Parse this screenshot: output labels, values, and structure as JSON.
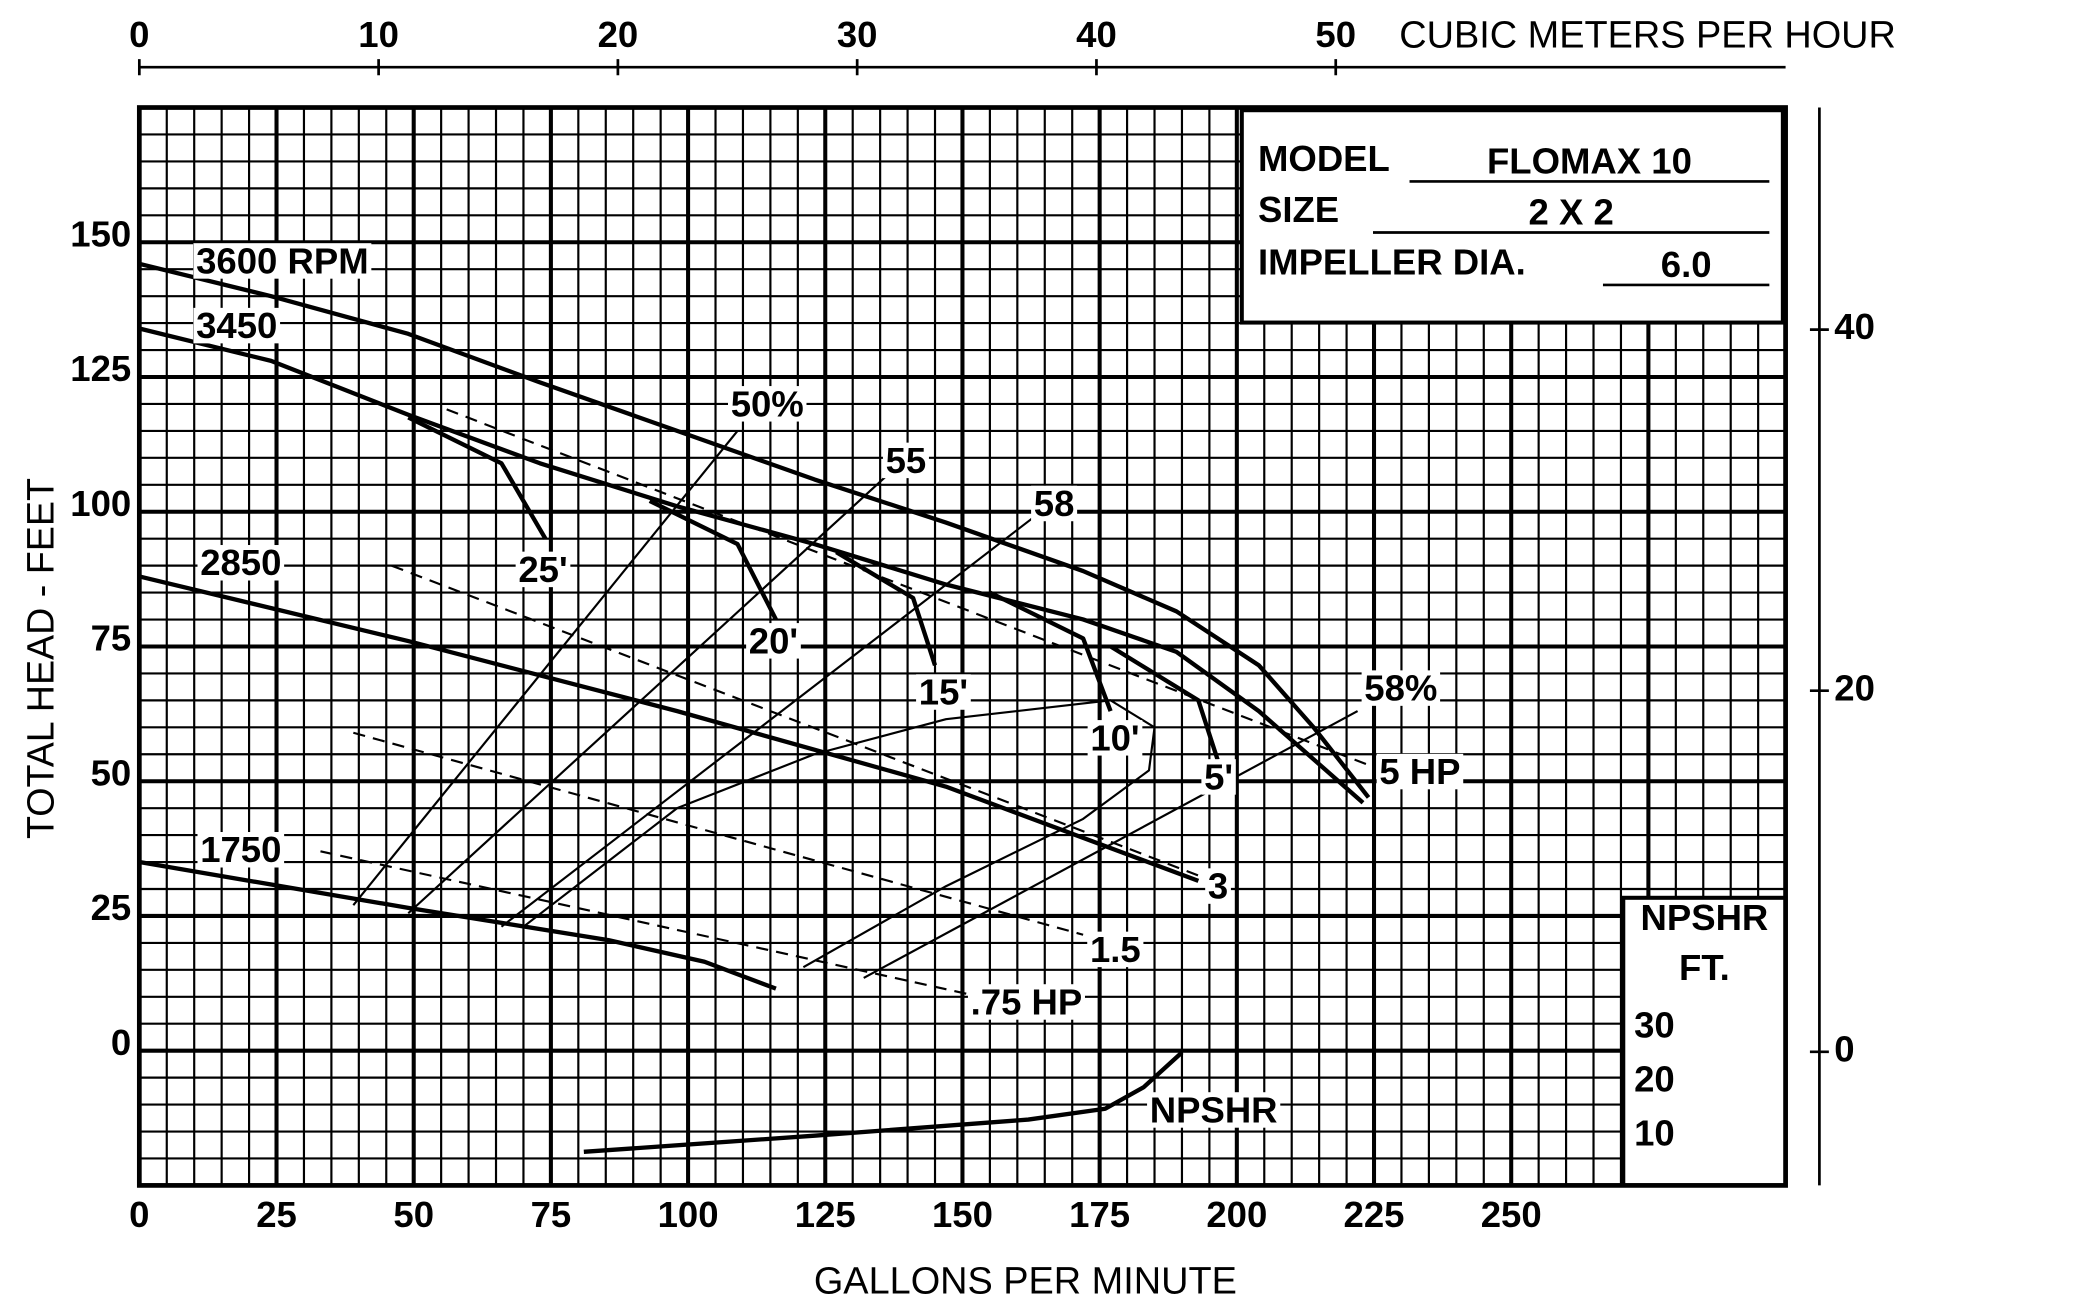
{
  "chart_data": {
    "type": "line",
    "x_label": "GALLONS PER MINUTE",
    "y_label": "TOTAL HEAD - FEET",
    "x2_label": "CUBIC METERS PER HOUR",
    "y3_label": [
      "NPSHR",
      "FT."
    ],
    "info": [
      {
        "label": "MODEL",
        "value": "FLOMAX 10"
      },
      {
        "label": "SIZE",
        "value": "2 X 2"
      },
      {
        "label": "IMPELLER DIA.",
        "value": "6.0"
      }
    ],
    "color": "#000000",
    "grid": true,
    "xlim": [
      0,
      300
    ],
    "xticks": [
      0,
      25,
      50,
      75,
      100,
      125,
      150,
      175,
      200,
      225,
      250
    ],
    "ylim": [
      -25,
      175
    ],
    "yticks": [
      0,
      25,
      50,
      75,
      100,
      125,
      150
    ],
    "x2lim": [
      0,
      68.8
    ],
    "x2ticks": [
      0,
      10,
      20,
      30,
      40,
      50
    ],
    "y2lim": [
      -7.4,
      52.3
    ],
    "y2ticks": [
      0,
      20,
      40
    ],
    "y3lim": [
      0.75,
      201.25
    ],
    "y3ticks": [
      30,
      20,
      10
    ],
    "series": [
      {
        "name": "3600 RPM",
        "style": "solid",
        "x": [
          0,
          24,
          49,
          73,
          98,
          123,
          147,
          172,
          189,
          204,
          214,
          224
        ],
        "values": [
          146,
          140,
          133,
          124,
          115,
          106,
          98,
          89,
          81.5,
          71.5,
          60,
          47
        ]
      },
      {
        "name": "3450",
        "style": "solid",
        "x": [
          0,
          24,
          49,
          73,
          98,
          123,
          147,
          172,
          189,
          204,
          223
        ],
        "values": [
          134,
          128,
          118,
          109,
          101,
          94,
          86.5,
          80,
          74,
          63,
          46
        ]
      },
      {
        "name": "2850",
        "style": "solid",
        "x": [
          0,
          49,
          98,
          147,
          193
        ],
        "values": [
          88,
          76,
          63,
          49,
          31.5
        ]
      },
      {
        "name": "1750",
        "style": "solid",
        "x": [
          0,
          49,
          85.5,
          103,
          116
        ],
        "values": [
          35,
          26.5,
          20.5,
          16.5,
          11.5
        ]
      },
      {
        "name": "50%",
        "style": "thin",
        "x": [
          39,
          109
        ],
        "values": [
          27,
          115
        ]
      },
      {
        "name": "55",
        "style": "thin",
        "x": [
          49,
          136
        ],
        "values": [
          25.5,
          106.5
        ]
      },
      {
        "name": "58",
        "style": "thin",
        "x": [
          66,
          163
        ],
        "values": [
          23,
          99
        ]
      },
      {
        "style": "thin",
        "x": [
          121,
          147,
          172,
          184,
          185,
          177,
          147,
          123,
          98,
          70
        ],
        "values": [
          15.5,
          30.5,
          43,
          52,
          60,
          65,
          61.5,
          55,
          45,
          23
        ]
      },
      {
        "name": "58%",
        "style": "thin",
        "x": [
          132,
          222
        ],
        "values": [
          13.5,
          63
        ]
      },
      {
        "name": "25'",
        "style": "solid",
        "x": [
          49,
          66,
          74
        ],
        "values": [
          117.5,
          109,
          95
        ]
      },
      {
        "name": "20'",
        "style": "solid",
        "x": [
          93,
          109,
          116
        ],
        "values": [
          102,
          94,
          80
        ]
      },
      {
        "name": "15'",
        "style": "solid",
        "x": [
          127,
          141,
          145
        ],
        "values": [
          92.5,
          84,
          71.5
        ]
      },
      {
        "name": "10'",
        "style": "solid",
        "x": [
          155,
          172,
          177
        ],
        "values": [
          85,
          76.5,
          63
        ]
      },
      {
        "name": "5'",
        "style": "solid",
        "x": [
          177,
          193,
          196.5
        ],
        "values": [
          75,
          65,
          54
        ]
      },
      {
        "name": ".75 HP",
        "style": "dashed",
        "x": [
          33,
          151
        ],
        "values": [
          37,
          10.5
        ]
      },
      {
        "name": "1.5",
        "style": "dashed",
        "x": [
          39,
          172
        ],
        "values": [
          59,
          21.5
        ]
      },
      {
        "name": "3",
        "style": "dashed",
        "x": [
          46,
          193
        ],
        "values": [
          90,
          32.5
        ]
      },
      {
        "name": "5 HP",
        "style": "dashed",
        "x": [
          56,
          224
        ],
        "values": [
          119,
          53
        ]
      },
      {
        "name": "NPSHR",
        "style": "solid",
        "axis": "y3",
        "x": [
          81,
          123,
          162,
          176,
          183,
          190
        ],
        "values": [
          7,
          10,
          13,
          15,
          19,
          25.5
        ]
      }
    ]
  }
}
